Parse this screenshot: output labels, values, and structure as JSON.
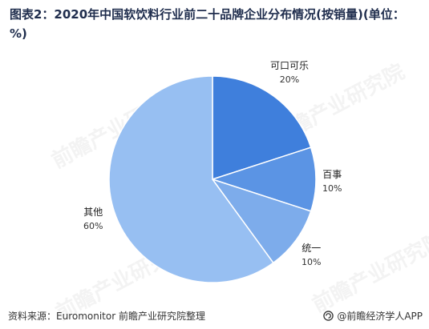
{
  "title": "图表2：2020年中国软饮料行业前二十品牌企业分布情况(按销量)(单位：%)",
  "source": "资料来源：Euromonitor 前瞻产业研究院整理",
  "brand": "@前瞻经济学人APP",
  "watermark": "前瞻产业研究院",
  "colors": {
    "slice_coca_cola": "#3f7fdc",
    "slice_pepsi": "#5b94e4",
    "slice_uni": "#7daceb",
    "slice_other": "#97bff2",
    "border": "#ffffff"
  },
  "chart_data": {
    "type": "pie",
    "title": "图表2：2020年中国软饮料行业前二十品牌企业分布情况(按销量)(单位：%)",
    "slices": [
      {
        "label": "可口可乐",
        "value": 20,
        "value_label": "20%"
      },
      {
        "label": "百事",
        "value": 10,
        "value_label": "10%"
      },
      {
        "label": "统一",
        "value": 10,
        "value_label": "10%"
      },
      {
        "label": "其他",
        "value": 60,
        "value_label": "60%"
      }
    ]
  }
}
